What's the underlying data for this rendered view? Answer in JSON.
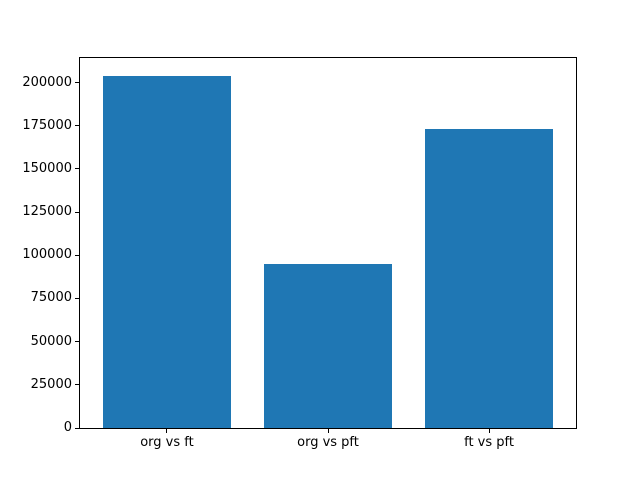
{
  "chart_data": {
    "type": "bar",
    "title": "",
    "xlabel": "",
    "ylabel": "",
    "categories": [
      "org vs ft",
      "org vs pft",
      "ft vs pft"
    ],
    "values": [
      204000,
      95000,
      173000
    ],
    "yticks": [
      0,
      25000,
      50000,
      75000,
      100000,
      125000,
      150000,
      175000,
      200000
    ],
    "ytick_labels": [
      "0",
      "25000",
      "50000",
      "75000",
      "100000",
      "125000",
      "150000",
      "175000",
      "200000"
    ],
    "ylim": [
      0,
      214200
    ],
    "xlim": [
      -0.54,
      2.54
    ],
    "bar_width": 0.8,
    "bar_color": "#1f77b4",
    "spine_color": "#000000",
    "background_color": "#ffffff",
    "grid": false,
    "legend": null
  }
}
